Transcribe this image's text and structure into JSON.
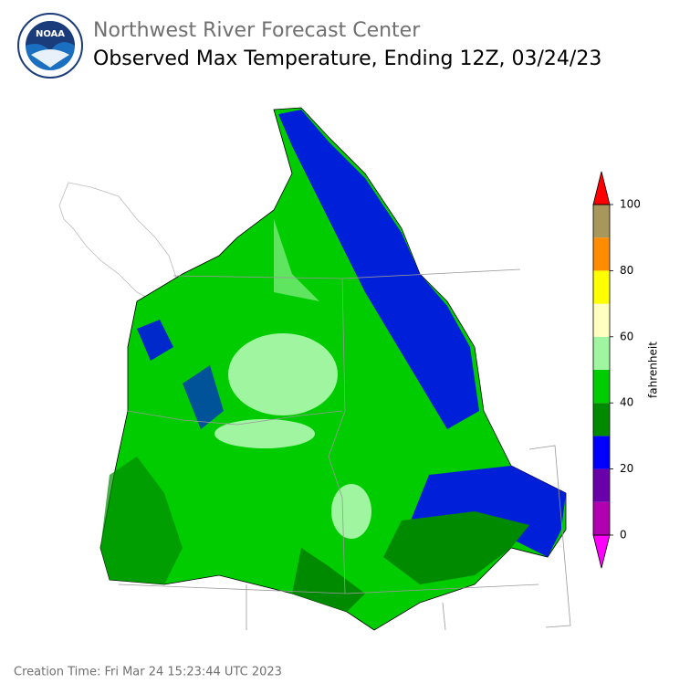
{
  "header": {
    "logo_text": "NOAA",
    "org": "Northwest River Forecast Center",
    "title": "Observed Max Temperature, Ending 12Z, 03/24/23"
  },
  "colorbar": {
    "label": "fahrenheit",
    "bounds": [
      0,
      10,
      20,
      30,
      40,
      50,
      60,
      70,
      80,
      90,
      100
    ],
    "colors": [
      "#b000b0",
      "#6a00aa",
      "#0000ff",
      "#008a00",
      "#00cc00",
      "#a0f5a0",
      "#ffffc0",
      "#ffff00",
      "#ff8c00",
      "#a8975a"
    ],
    "under_color": "#ff00ff",
    "over_color": "#ff0000",
    "ticks": [
      0,
      20,
      40,
      60,
      80,
      100
    ]
  },
  "footer": {
    "creation_time": "Creation Time: Fri Mar 24 15:23:44 UTC 2023"
  }
}
